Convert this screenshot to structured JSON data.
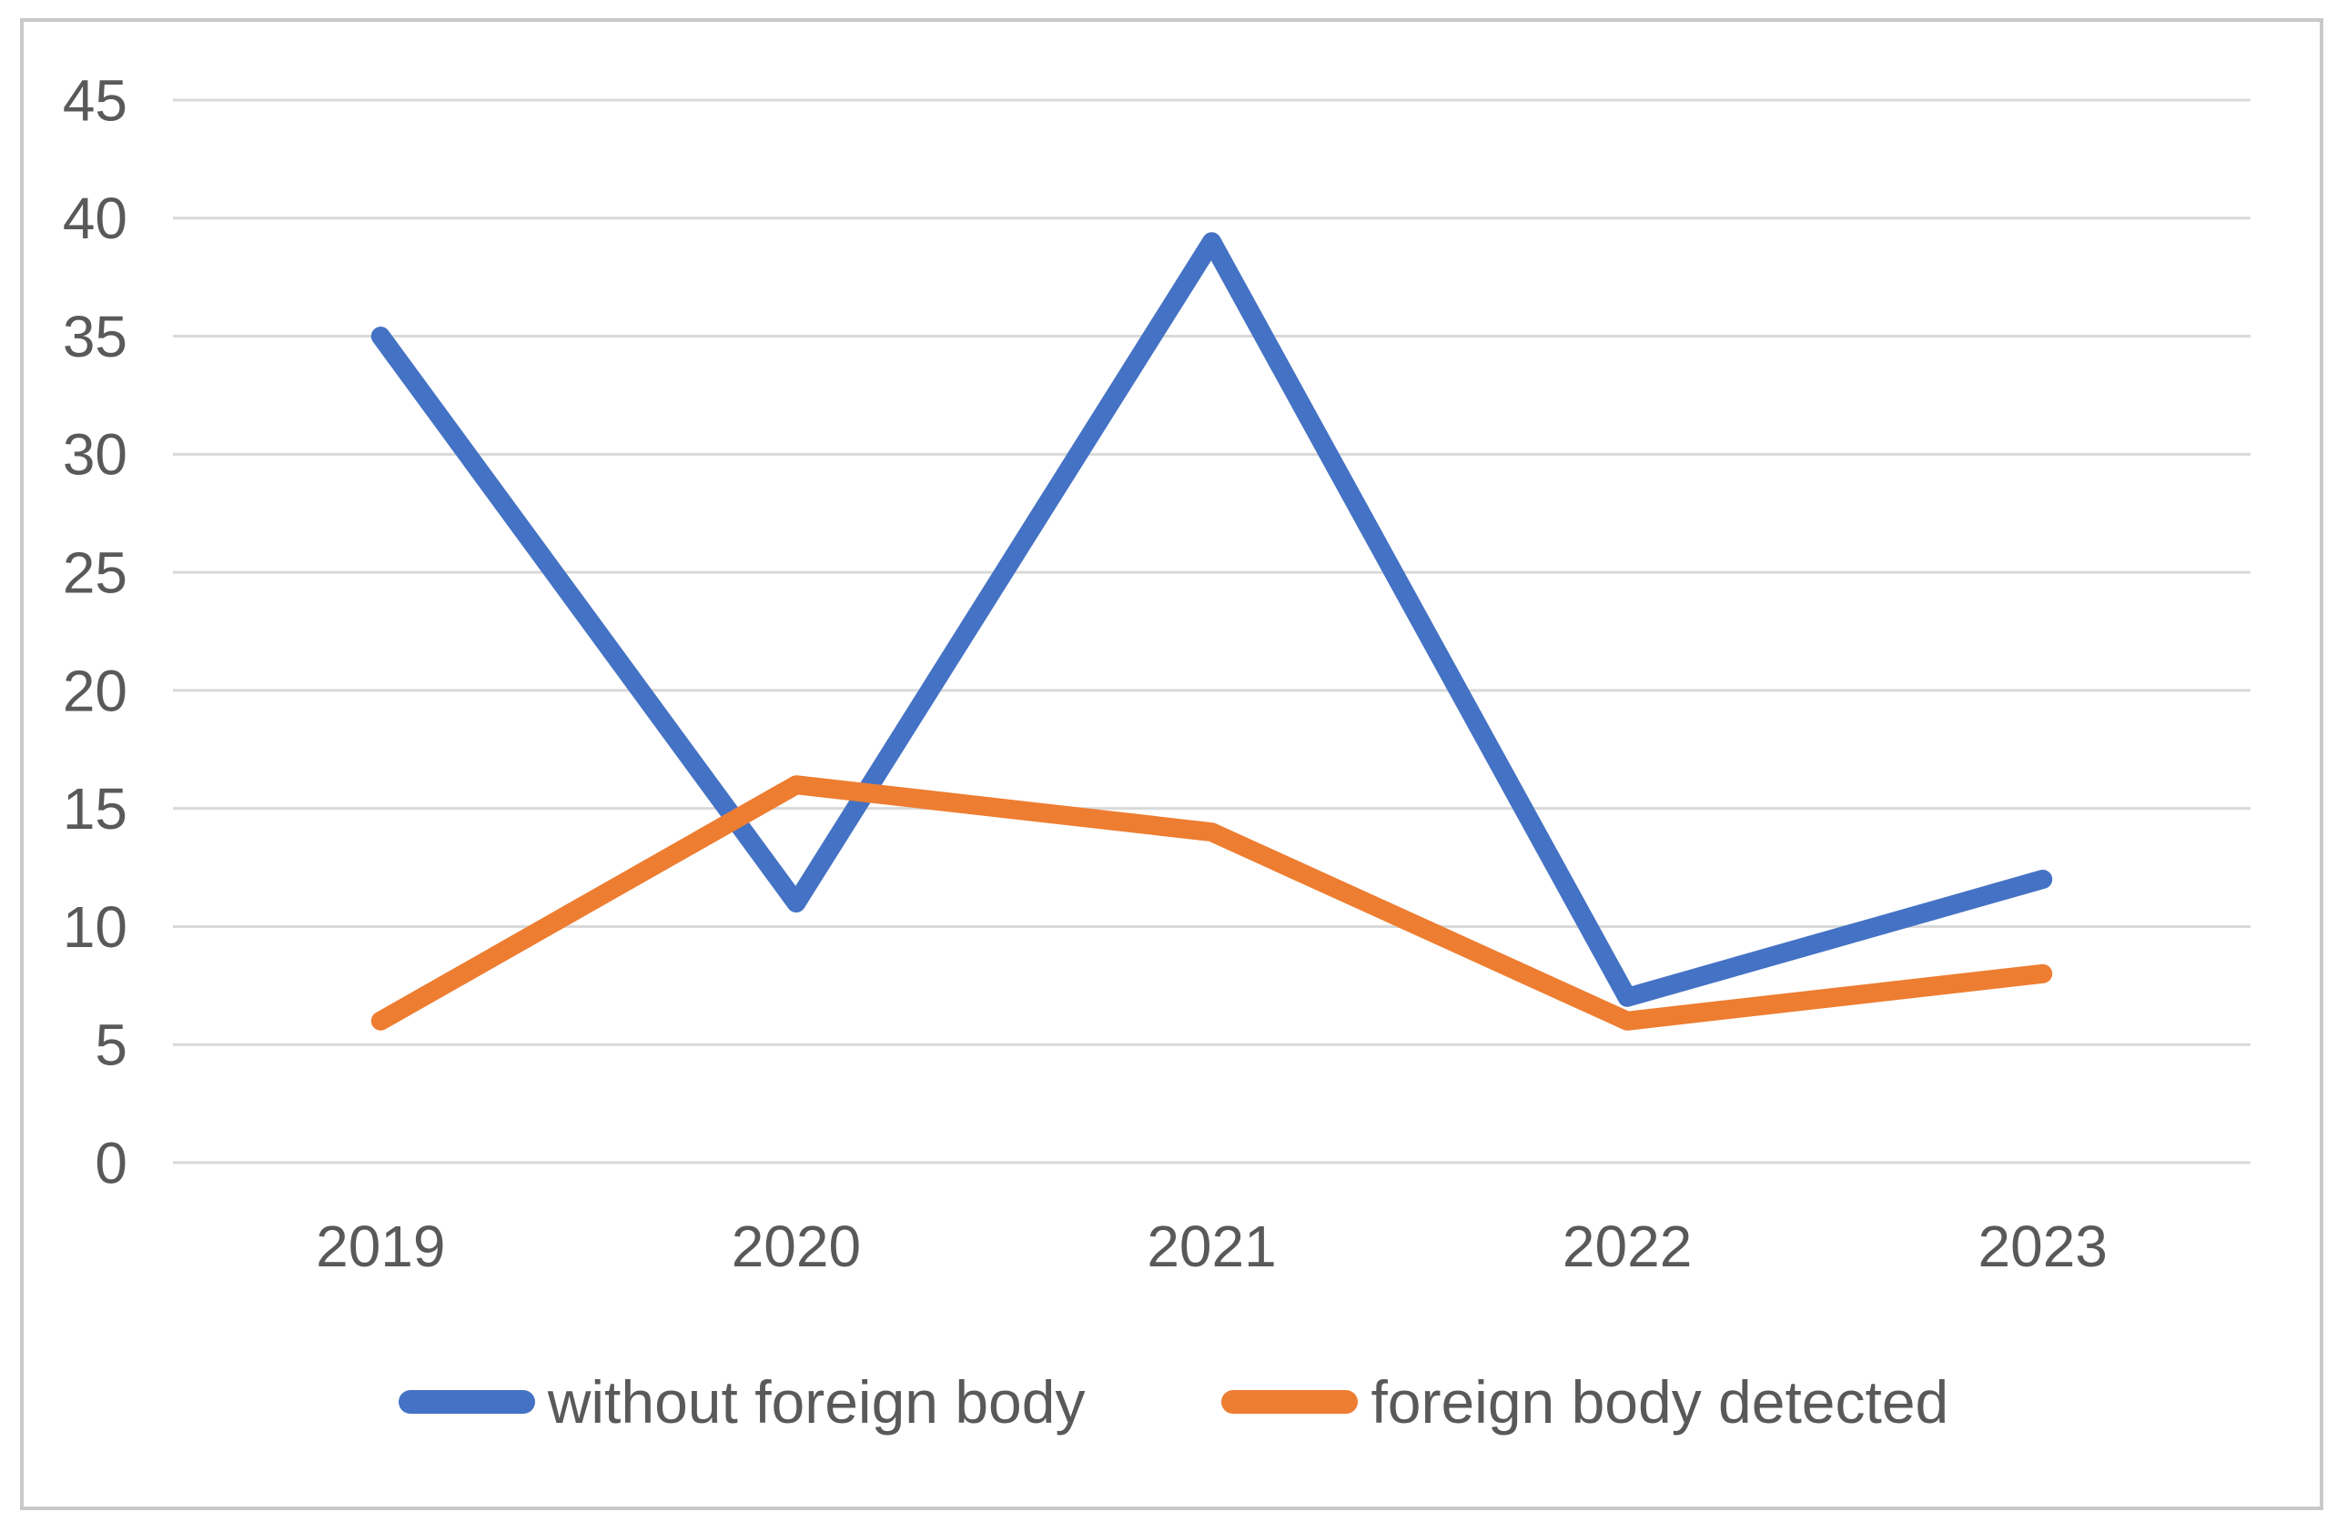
{
  "chart_data": {
    "type": "line",
    "categories": [
      "2019",
      "2020",
      "2021",
      "2022",
      "2023"
    ],
    "series": [
      {
        "name": "without foreign body",
        "color": "#4472C4",
        "values": [
          35,
          11,
          39,
          7,
          12
        ]
      },
      {
        "name": "foreign body detected",
        "color": "#ED7D31",
        "values": [
          6,
          16,
          14,
          6,
          8
        ]
      }
    ],
    "title": "",
    "xlabel": "",
    "ylabel": "",
    "ylim": [
      0,
      45
    ],
    "ytick_step": 5,
    "grid": true,
    "legend_position": "bottom"
  },
  "colors": {
    "gridline": "#D9D9D9",
    "tick_label": "#595959",
    "frame_border": "#C9C9C9",
    "background": "#FFFFFF"
  }
}
